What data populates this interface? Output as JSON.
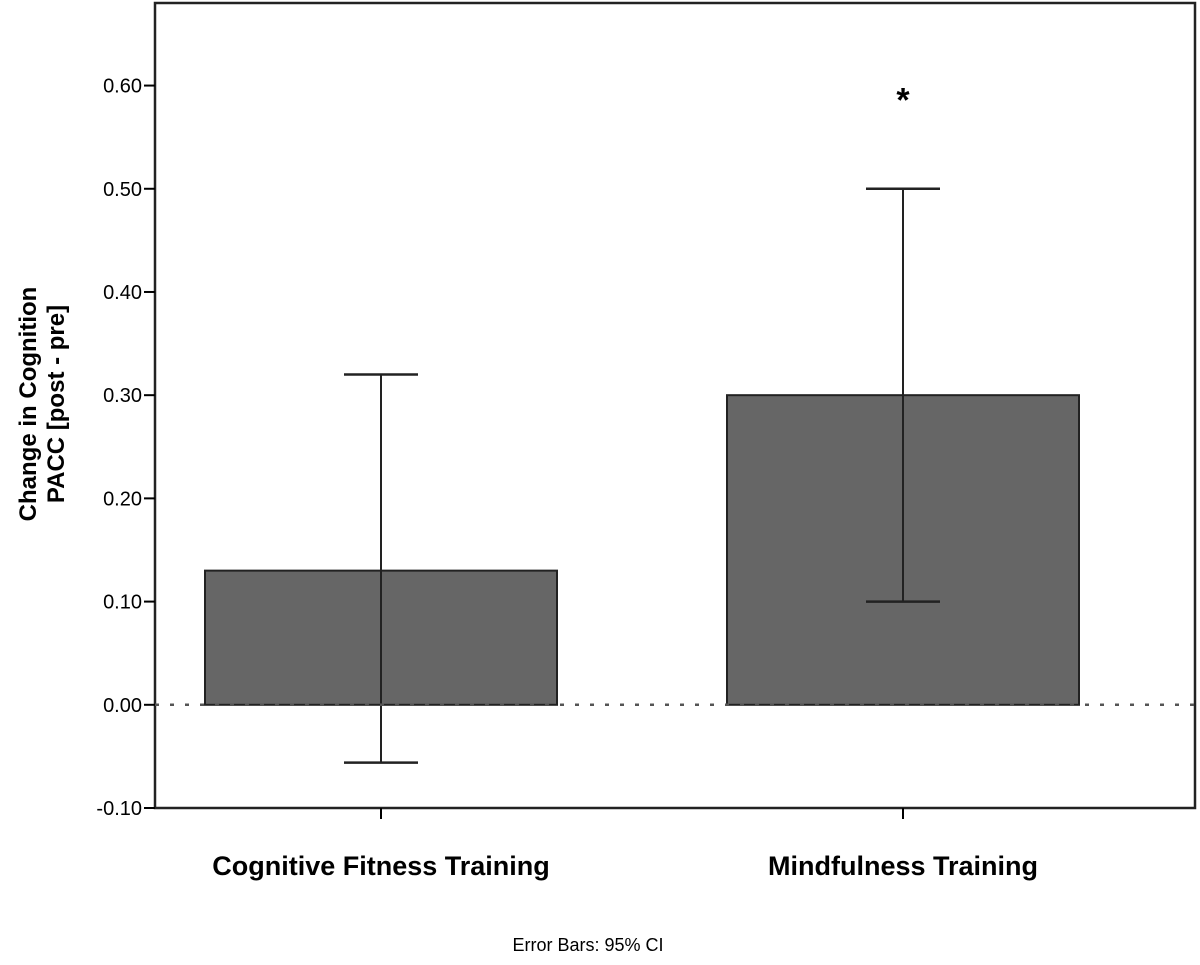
{
  "chart_data": {
    "type": "bar",
    "title": "",
    "xlabel": "",
    "ylabel": [
      "Change in Cognition",
      "PACC [post - pre]"
    ],
    "categories": [
      "Cognitive Fitness Training",
      "Mindfulness Training"
    ],
    "values": [
      0.13,
      0.3
    ],
    "error_bars": {
      "type": "95% CI",
      "lower": [
        -0.056,
        0.1
      ],
      "upper": [
        0.32,
        0.5
      ]
    },
    "annotations": [
      {
        "category": "Mindfulness Training",
        "text": "*"
      }
    ],
    "ylim": [
      -0.1,
      0.68
    ],
    "yticks": [
      -0.1,
      0.0,
      0.1,
      0.2,
      0.3,
      0.4,
      0.5,
      0.6
    ],
    "ytick_labels": [
      "-0.10",
      "0.00",
      "0.10",
      "0.20",
      "0.30",
      "0.40",
      "0.50",
      "0.60"
    ],
    "reference_line": {
      "y": 0.0,
      "style": "dotted"
    },
    "grid": false,
    "bar_color": "#666666",
    "footnote": "Error Bars: 95% CI"
  }
}
